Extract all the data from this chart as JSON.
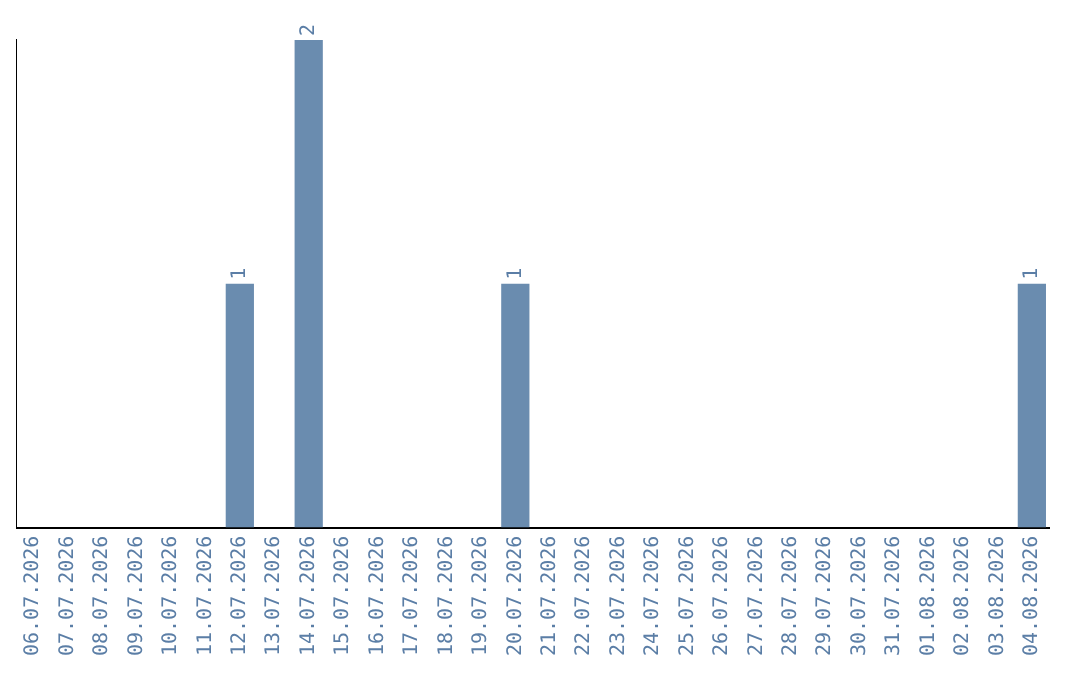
{
  "chart_data": {
    "type": "bar",
    "categories": [
      "06.07.2026",
      "07.07.2026",
      "08.07.2026",
      "09.07.2026",
      "10.07.2026",
      "11.07.2026",
      "12.07.2026",
      "13.07.2026",
      "14.07.2026",
      "15.07.2026",
      "16.07.2026",
      "17.07.2026",
      "18.07.2026",
      "19.07.2026",
      "20.07.2026",
      "21.07.2026",
      "22.07.2026",
      "23.07.2026",
      "24.07.2026",
      "25.07.2026",
      "26.07.2026",
      "27.07.2026",
      "28.07.2026",
      "29.07.2026",
      "30.07.2026",
      "31.07.2026",
      "01.08.2026",
      "02.08.2026",
      "03.08.2026",
      "04.08.2026"
    ],
    "values": [
      0,
      0,
      0,
      0,
      0,
      0,
      1,
      0,
      2,
      0,
      0,
      0,
      0,
      0,
      1,
      0,
      0,
      0,
      0,
      0,
      0,
      0,
      0,
      0,
      0,
      0,
      0,
      0,
      0,
      1
    ],
    "value_labels": [
      null,
      null,
      null,
      null,
      null,
      null,
      "1",
      null,
      "2",
      null,
      null,
      null,
      null,
      null,
      "1",
      null,
      null,
      null,
      null,
      null,
      null,
      null,
      null,
      null,
      null,
      null,
      null,
      null,
      null,
      "1"
    ],
    "color": "#6a8caf",
    "grid": false,
    "legend": false,
    "tick_labels": "x"
  }
}
